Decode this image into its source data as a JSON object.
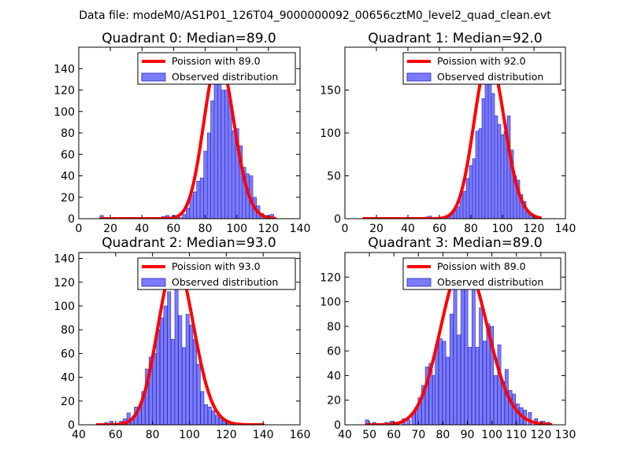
{
  "figure": {
    "suptitle": "Data file: modeM0/AS1P01_126T04_9000000092_00656cztM0_level2_quad_clean.evt"
  },
  "colors": {
    "poisson_line": "#ff0000",
    "bar_fill": "#7b7bff",
    "bar_edge": "#2a2ab0",
    "axes": "#000000"
  },
  "chart_data": [
    {
      "type": "bar",
      "title": "Quadrant 0: Median=89.0",
      "xlim": [
        0,
        140
      ],
      "ylim": [
        0,
        160
      ],
      "xticks": [
        0,
        20,
        40,
        60,
        80,
        100,
        120,
        140
      ],
      "yticks": [
        0,
        20,
        40,
        60,
        80,
        100,
        120,
        140
      ],
      "xtick_labels": [
        "0",
        "20",
        "40",
        "60",
        "80",
        "100",
        "120",
        "140"
      ],
      "ytick_labels": [
        "0",
        "20",
        "40",
        "60",
        "80",
        "100",
        "120",
        "140"
      ],
      "legend": [
        "Poission with 89.0",
        "Observed distribution"
      ],
      "legend_loc": "upper-right",
      "poisson_mean": 89.0,
      "poisson_scale": 150,
      "poisson_x_range": [
        14,
        124
      ],
      "bin_width": 2.2,
      "bins": [
        [
          14.5,
          3
        ],
        [
          53.5,
          2
        ],
        [
          56.0,
          3
        ],
        [
          58.2,
          1
        ],
        [
          60.0,
          3
        ],
        [
          62.3,
          3
        ],
        [
          64.5,
          1
        ],
        [
          66.8,
          4
        ],
        [
          69.0,
          10
        ],
        [
          71.3,
          22
        ],
        [
          73.5,
          25
        ],
        [
          75.7,
          35
        ],
        [
          77.9,
          38
        ],
        [
          80.2,
          63
        ],
        [
          82.4,
          80
        ],
        [
          84.6,
          110
        ],
        [
          86.8,
          132
        ],
        [
          89.0,
          143
        ],
        [
          91.3,
          120
        ],
        [
          93.5,
          120
        ],
        [
          95.7,
          110
        ],
        [
          97.9,
          82
        ],
        [
          100.2,
          84
        ],
        [
          102.4,
          68
        ],
        [
          104.6,
          48
        ],
        [
          106.8,
          42
        ],
        [
          109.0,
          40
        ],
        [
          111.3,
          20
        ],
        [
          113.5,
          12
        ],
        [
          115.7,
          5
        ],
        [
          117.9,
          3
        ],
        [
          120.1,
          3
        ],
        [
          122.3,
          4
        ]
      ]
    },
    {
      "type": "bar",
      "title": "Quadrant 1: Median=92.0",
      "xlim": [
        0,
        140
      ],
      "ylim": [
        0,
        200
      ],
      "xticks": [
        0,
        20,
        40,
        60,
        80,
        100,
        120,
        140
      ],
      "yticks": [
        0,
        50,
        100,
        150
      ],
      "xtick_labels": [
        "0",
        "20",
        "40",
        "60",
        "80",
        "100",
        "120",
        "140"
      ],
      "ytick_labels": [
        "0",
        "50",
        "100",
        "150"
      ],
      "legend": [
        "Poission with 92.0",
        "Observed distribution"
      ],
      "legend_loc": "upper-right",
      "poisson_mean": 92.0,
      "poisson_scale": 188,
      "poisson_x_range": [
        12,
        124
      ],
      "bin_width": 2.0,
      "bins": [
        [
          52.0,
          2
        ],
        [
          54.0,
          3
        ],
        [
          66.0,
          3
        ],
        [
          68.0,
          6
        ],
        [
          70.0,
          10
        ],
        [
          72.0,
          14
        ],
        [
          74.0,
          28
        ],
        [
          76.0,
          32
        ],
        [
          78.0,
          47
        ],
        [
          80.0,
          62
        ],
        [
          82.0,
          70
        ],
        [
          84.0,
          102
        ],
        [
          86.0,
          105
        ],
        [
          88.0,
          140
        ],
        [
          90.0,
          160
        ],
        [
          92.0,
          172
        ],
        [
          94.0,
          146
        ],
        [
          96.0,
          120
        ],
        [
          98.0,
          110
        ],
        [
          100.0,
          98
        ],
        [
          102.0,
          102
        ],
        [
          104.0,
          120
        ],
        [
          106.0,
          80
        ],
        [
          108.0,
          50
        ],
        [
          110.0,
          45
        ],
        [
          112.0,
          28
        ],
        [
          114.0,
          20
        ],
        [
          116.0,
          10
        ],
        [
          118.0,
          6
        ],
        [
          120.0,
          3
        ],
        [
          122.0,
          2
        ]
      ]
    },
    {
      "type": "bar",
      "title": "Quadrant 2: Median=93.0",
      "xlim": [
        40,
        160
      ],
      "ylim": [
        0,
        145
      ],
      "xticks": [
        40,
        60,
        80,
        100,
        120,
        140,
        160
      ],
      "yticks": [
        0,
        20,
        40,
        60,
        80,
        100,
        120,
        140
      ],
      "xtick_labels": [
        "40",
        "60",
        "80",
        "100",
        "120",
        "140",
        "160"
      ],
      "ytick_labels": [
        "0",
        "20",
        "40",
        "60",
        "80",
        "100",
        "120",
        "140"
      ],
      "legend": [
        "Poission with 93.0",
        "Observed distribution"
      ],
      "legend_loc": "upper-right",
      "poisson_mean": 93.0,
      "poisson_scale": 137,
      "poisson_x_range": [
        50,
        140
      ],
      "bin_width": 1.8,
      "bins": [
        [
          55.0,
          2
        ],
        [
          57.7,
          3
        ],
        [
          63.0,
          3
        ],
        [
          65.0,
          5
        ],
        [
          67.0,
          10
        ],
        [
          69.0,
          5
        ],
        [
          71.0,
          15
        ],
        [
          73.0,
          15
        ],
        [
          75.0,
          28
        ],
        [
          77.0,
          47
        ],
        [
          79.0,
          57
        ],
        [
          81.0,
          60
        ],
        [
          83.0,
          80
        ],
        [
          85.0,
          90
        ],
        [
          87.0,
          100
        ],
        [
          89.0,
          112
        ],
        [
          91.0,
          72
        ],
        [
          93.0,
          127
        ],
        [
          95.0,
          92
        ],
        [
          97.0,
          65
        ],
        [
          99.0,
          93
        ],
        [
          101.0,
          84
        ],
        [
          103.0,
          72
        ],
        [
          105.0,
          51
        ],
        [
          107.0,
          28
        ],
        [
          109.0,
          17
        ],
        [
          111.0,
          15
        ],
        [
          113.0,
          12
        ],
        [
          115.0,
          8
        ],
        [
          117.0,
          6
        ],
        [
          119.0,
          4
        ],
        [
          121.0,
          2
        ]
      ]
    },
    {
      "type": "bar",
      "title": "Quadrant 3: Median=89.0",
      "xlim": [
        40,
        130
      ],
      "ylim": [
        0,
        140
      ],
      "xticks": [
        40,
        50,
        60,
        70,
        80,
        90,
        100,
        110,
        120,
        130
      ],
      "yticks": [
        0,
        20,
        40,
        60,
        80,
        100,
        120
      ],
      "xtick_labels": [
        "40",
        "50",
        "60",
        "70",
        "80",
        "90",
        "100",
        "110",
        "120",
        "130"
      ],
      "ytick_labels": [
        "0",
        "20",
        "40",
        "60",
        "80",
        "100",
        "120"
      ],
      "legend": [
        "Poission with 89.0",
        "Observed distribution"
      ],
      "legend_loc": "upper-right",
      "poisson_mean": 89.0,
      "poisson_scale": 132,
      "poisson_x_range": [
        49,
        124
      ],
      "bin_width": 1.35,
      "bins": [
        [
          49.0,
          4
        ],
        [
          52.0,
          2
        ],
        [
          57.0,
          2
        ],
        [
          59.0,
          3
        ],
        [
          64.0,
          5
        ],
        [
          66.0,
          4
        ],
        [
          68.0,
          10
        ],
        [
          69.5,
          15
        ],
        [
          70.5,
          22
        ],
        [
          72.0,
          32
        ],
        [
          73.5,
          47
        ],
        [
          75.0,
          50
        ],
        [
          76.5,
          40
        ],
        [
          77.5,
          65
        ],
        [
          79.0,
          70
        ],
        [
          80.5,
          68
        ],
        [
          82.0,
          55
        ],
        [
          83.5,
          90
        ],
        [
          85.0,
          112
        ],
        [
          86.5,
          73
        ],
        [
          88.0,
          114
        ],
        [
          89.5,
          120
        ],
        [
          91.0,
          63
        ],
        [
          92.5,
          116
        ],
        [
          94.0,
          63
        ],
        [
          95.5,
          95
        ],
        [
          97.0,
          68
        ],
        [
          98.5,
          82
        ],
        [
          100.0,
          80
        ],
        [
          101.5,
          40
        ],
        [
          103.0,
          65
        ],
        [
          104.5,
          35
        ],
        [
          106.0,
          45
        ],
        [
          107.5,
          28
        ],
        [
          109.0,
          25
        ],
        [
          110.5,
          17
        ],
        [
          112.0,
          14
        ],
        [
          113.5,
          12
        ],
        [
          115.5,
          10
        ],
        [
          118.0,
          5
        ],
        [
          121.0,
          3
        ],
        [
          123.0,
          2
        ]
      ]
    }
  ]
}
